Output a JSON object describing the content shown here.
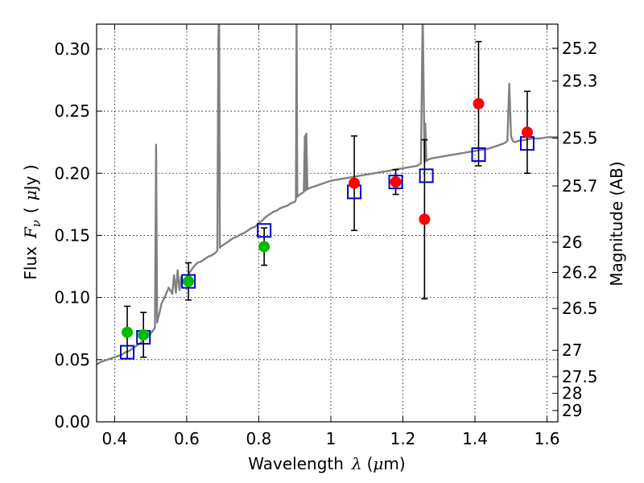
{
  "chart_data": {
    "type": "scatter",
    "xlabel_prefix": "Wavelength",
    "xlabel_symbol": "λ",
    "xlabel_unit_open": "(",
    "xlabel_unit_mu": "μ",
    "xlabel_unit_rest": "m)",
    "ylabel_prefix": "Flux",
    "ylabel_symbol": "F",
    "ylabel_subscript": "ν",
    "ylabel_unit_open": "(",
    "ylabel_unit_mu": "μ",
    "ylabel_unit_rest": "Jy )",
    "y2label": "Magnitude (AB)",
    "xlim": [
      0.35,
      1.63
    ],
    "ylim": [
      0.0,
      0.32
    ],
    "grid": true,
    "x_ticks": [
      {
        "value": 0.4,
        "label": "0.4"
      },
      {
        "value": 0.6,
        "label": "0.6"
      },
      {
        "value": 0.8,
        "label": "0.8"
      },
      {
        "value": 1.0,
        "label": "1"
      },
      {
        "value": 1.2,
        "label": "1.2"
      },
      {
        "value": 1.4,
        "label": "1.4"
      },
      {
        "value": 1.6,
        "label": "1.6"
      }
    ],
    "y_ticks": [
      {
        "value": 0.0,
        "label": "0.00"
      },
      {
        "value": 0.05,
        "label": "0.05"
      },
      {
        "value": 0.1,
        "label": "0.10"
      },
      {
        "value": 0.15,
        "label": "0.15"
      },
      {
        "value": 0.2,
        "label": "0.20"
      },
      {
        "value": 0.25,
        "label": "0.25"
      },
      {
        "value": 0.3,
        "label": "0.30"
      }
    ],
    "y2_ticks": [
      {
        "flux": 0.3006,
        "label": "25.2"
      },
      {
        "flux": 0.2742,
        "label": "25.3"
      },
      {
        "flux": 0.2282,
        "label": "25.5"
      },
      {
        "flux": 0.1898,
        "label": "25.7"
      },
      {
        "flux": 0.1445,
        "label": "26"
      },
      {
        "flux": 0.1202,
        "label": "26.2"
      },
      {
        "flux": 0.0912,
        "label": "26.5"
      },
      {
        "flux": 0.0575,
        "label": "27"
      },
      {
        "flux": 0.0363,
        "label": "27.5"
      },
      {
        "flux": 0.0229,
        "label": "28"
      },
      {
        "flux": 0.0091,
        "label": "29"
      }
    ],
    "series": [
      {
        "name": "model-spectrum",
        "kind": "line",
        "color": "#808080",
        "x": [
          0.35,
          0.36,
          0.37,
          0.38,
          0.39,
          0.4,
          0.41,
          0.42,
          0.43,
          0.44,
          0.45,
          0.46,
          0.47,
          0.48,
          0.49,
          0.5,
          0.508,
          0.512,
          0.515,
          0.518,
          0.52,
          0.525,
          0.53,
          0.54,
          0.55,
          0.56,
          0.565,
          0.57,
          0.575,
          0.58,
          0.585,
          0.59,
          0.6,
          0.61,
          0.62,
          0.63,
          0.64,
          0.65,
          0.66,
          0.67,
          0.68,
          0.685,
          0.688,
          0.69,
          0.692,
          0.695,
          0.7,
          0.71,
          0.72,
          0.73,
          0.74,
          0.75,
          0.76,
          0.77,
          0.78,
          0.79,
          0.8,
          0.81,
          0.82,
          0.83,
          0.84,
          0.85,
          0.86,
          0.87,
          0.88,
          0.89,
          0.9,
          0.903,
          0.905,
          0.907,
          0.91,
          0.915,
          0.92,
          0.925,
          0.928,
          0.93,
          0.932,
          0.935,
          0.94,
          0.95,
          0.96,
          0.97,
          0.98,
          0.99,
          1.0,
          1.02,
          1.04,
          1.06,
          1.08,
          1.1,
          1.12,
          1.14,
          1.16,
          1.18,
          1.2,
          1.22,
          1.24,
          1.25,
          1.255,
          1.26,
          1.262,
          1.265,
          1.27,
          1.28,
          1.3,
          1.32,
          1.34,
          1.36,
          1.38,
          1.4,
          1.42,
          1.44,
          1.45,
          1.46,
          1.47,
          1.48,
          1.49,
          1.495,
          1.5,
          1.505,
          1.51,
          1.52,
          1.54,
          1.56,
          1.58,
          1.6,
          1.62,
          1.63
        ],
        "y": [
          0.046,
          0.048,
          0.049,
          0.05,
          0.051,
          0.052,
          0.053,
          0.054,
          0.056,
          0.057,
          0.059,
          0.061,
          0.063,
          0.066,
          0.068,
          0.071,
          0.074,
          0.076,
          0.223,
          0.08,
          0.083,
          0.088,
          0.095,
          0.101,
          0.108,
          0.103,
          0.118,
          0.104,
          0.122,
          0.106,
          0.117,
          0.112,
          0.116,
          0.121,
          0.125,
          0.128,
          0.129,
          0.131,
          0.133,
          0.134,
          0.136,
          0.138,
          0.31,
          0.33,
          0.14,
          0.141,
          0.142,
          0.144,
          0.146,
          0.148,
          0.149,
          0.151,
          0.152,
          0.154,
          0.156,
          0.157,
          0.16,
          0.162,
          0.165,
          0.167,
          0.169,
          0.17,
          0.172,
          0.173,
          0.174,
          0.176,
          0.177,
          0.179,
          0.33,
          0.181,
          0.182,
          0.183,
          0.184,
          0.185,
          0.23,
          0.186,
          0.232,
          0.187,
          0.188,
          0.189,
          0.19,
          0.191,
          0.192,
          0.193,
          0.194,
          0.195,
          0.196,
          0.197,
          0.198,
          0.199,
          0.2,
          0.201,
          0.202,
          0.203,
          0.204,
          0.205,
          0.206,
          0.208,
          0.33,
          0.209,
          0.24,
          0.21,
          0.211,
          0.212,
          0.213,
          0.214,
          0.215,
          0.216,
          0.217,
          0.218,
          0.219,
          0.22,
          0.221,
          0.222,
          0.223,
          0.224,
          0.226,
          0.272,
          0.23,
          0.226,
          0.225,
          0.226,
          0.227,
          0.228,
          0.228,
          0.229,
          0.229,
          0.229
        ]
      },
      {
        "name": "synthetic-photometry",
        "kind": "open-square",
        "color": "#0000cc",
        "x": [
          0.435,
          0.48,
          0.605,
          0.815,
          1.065,
          1.18,
          1.265,
          1.41,
          1.545
        ],
        "y": [
          0.056,
          0.068,
          0.113,
          0.154,
          0.185,
          0.193,
          0.198,
          0.215,
          0.224
        ]
      },
      {
        "name": "observed-green",
        "kind": "filled-circle",
        "color": "#00bb00",
        "x": [
          0.435,
          0.48,
          0.605,
          0.815
        ],
        "y": [
          0.072,
          0.07,
          0.113,
          0.141
        ],
        "yerr": [
          0.021,
          0.018,
          0.015,
          0.015
        ]
      },
      {
        "name": "observed-red",
        "kind": "filled-circle",
        "color": "#ff0000",
        "x": [
          1.065,
          1.18,
          1.26,
          1.41,
          1.545
        ],
        "y": [
          0.192,
          0.193,
          0.163,
          0.256,
          0.233
        ],
        "yerr": [
          0.038,
          0.01,
          0.064,
          0.05,
          0.033
        ]
      }
    ]
  }
}
